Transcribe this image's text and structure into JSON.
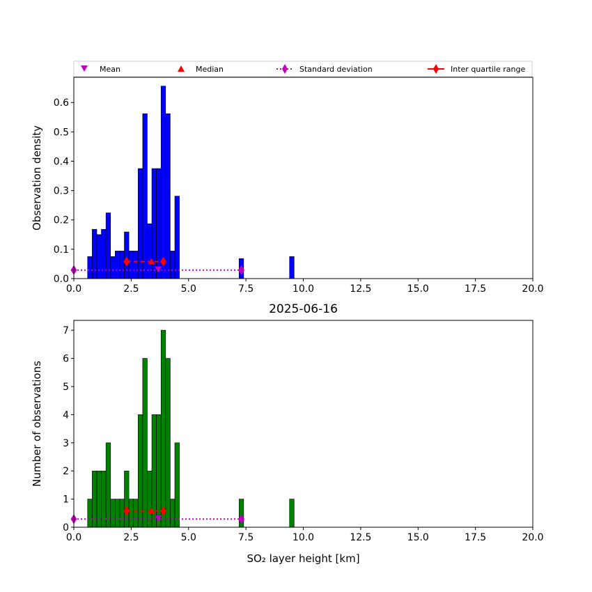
{
  "legend": {
    "items": [
      {
        "label": "Mean",
        "marker": "triangle-down",
        "color": "#bf00bf"
      },
      {
        "label": "Median",
        "marker": "triangle-up",
        "color": "#ff0000"
      },
      {
        "label": "Standard deviation",
        "marker": "diamond-dotted-line",
        "color": "#bf00bf"
      },
      {
        "label": "Inter quartile range",
        "marker": "diamond-solid-line",
        "color": "#ff0000"
      }
    ]
  },
  "chart_data": [
    {
      "type": "bar",
      "title": "",
      "xlabel": "",
      "ylabel": "Observation density",
      "xlim": [
        0,
        20
      ],
      "ylim": [
        0,
        0.686
      ],
      "xticks": [
        "0.0",
        "2.5",
        "5.0",
        "7.5",
        "10.0",
        "12.5",
        "15.0",
        "17.5",
        "20.0"
      ],
      "yticks": [
        "0.0",
        "0.1",
        "0.2",
        "0.3",
        "0.4",
        "0.5",
        "0.6"
      ],
      "ytick_values": [
        0,
        0.1,
        0.2,
        0.3,
        0.4,
        0.5,
        0.6
      ],
      "bar_color": "#0000ff",
      "bins": [
        {
          "x0": 0.6,
          "x1": 0.8,
          "value": 0.075
        },
        {
          "x0": 0.8,
          "x1": 1.0,
          "value": 0.168
        },
        {
          "x0": 1.0,
          "x1": 1.2,
          "value": 0.15
        },
        {
          "x0": 1.2,
          "x1": 1.4,
          "value": 0.168
        },
        {
          "x0": 1.4,
          "x1": 1.6,
          "value": 0.224
        },
        {
          "x0": 1.6,
          "x1": 1.8,
          "value": 0.075
        },
        {
          "x0": 1.8,
          "x1": 2.0,
          "value": 0.094
        },
        {
          "x0": 2.0,
          "x1": 2.2,
          "value": 0.094
        },
        {
          "x0": 2.2,
          "x1": 2.4,
          "value": 0.159
        },
        {
          "x0": 2.4,
          "x1": 2.6,
          "value": 0.094
        },
        {
          "x0": 2.6,
          "x1": 2.8,
          "value": 0.094
        },
        {
          "x0": 2.8,
          "x1": 3.0,
          "value": 0.375
        },
        {
          "x0": 3.0,
          "x1": 3.2,
          "value": 0.562
        },
        {
          "x0": 3.2,
          "x1": 3.4,
          "value": 0.187
        },
        {
          "x0": 3.4,
          "x1": 3.6,
          "value": 0.375
        },
        {
          "x0": 3.6,
          "x1": 3.8,
          "value": 0.375
        },
        {
          "x0": 3.8,
          "x1": 4.0,
          "value": 0.656
        },
        {
          "x0": 4.0,
          "x1": 4.2,
          "value": 0.562
        },
        {
          "x0": 4.2,
          "x1": 4.4,
          "value": 0.094
        },
        {
          "x0": 4.4,
          "x1": 4.6,
          "value": 0.281
        },
        {
          "x0": 7.2,
          "x1": 7.4,
          "value": 0.068
        },
        {
          "x0": 9.4,
          "x1": 9.6,
          "value": 0.075
        }
      ],
      "stats": {
        "marker_y": 0.058,
        "line_y": 0.029,
        "mean": {
          "x": 3.68,
          "y": 0.032
        },
        "median": {
          "x": 3.38,
          "y": 0.058
        },
        "std_range": [
          0.0,
          7.3
        ],
        "iqr_range": [
          2.3,
          3.9
        ]
      }
    },
    {
      "type": "bar",
      "title": "2025-06-16",
      "xlabel": "SO₂ layer height [km]",
      "ylabel": "Number of observations",
      "xlim": [
        0,
        20
      ],
      "ylim": [
        0,
        7.35
      ],
      "xticks": [
        "0.0",
        "2.5",
        "5.0",
        "7.5",
        "10.0",
        "12.5",
        "15.0",
        "17.5",
        "20.0"
      ],
      "yticks": [
        "0",
        "1",
        "2",
        "3",
        "4",
        "5",
        "6",
        "7"
      ],
      "ytick_values": [
        0,
        1,
        2,
        3,
        4,
        5,
        6,
        7
      ],
      "bar_color": "#008000",
      "bins": [
        {
          "x0": 0.6,
          "x1": 0.8,
          "value": 1
        },
        {
          "x0": 0.8,
          "x1": 1.0,
          "value": 2
        },
        {
          "x0": 1.0,
          "x1": 1.2,
          "value": 2
        },
        {
          "x0": 1.2,
          "x1": 1.4,
          "value": 2
        },
        {
          "x0": 1.4,
          "x1": 1.6,
          "value": 3
        },
        {
          "x0": 1.6,
          "x1": 1.8,
          "value": 1
        },
        {
          "x0": 1.8,
          "x1": 2.0,
          "value": 1
        },
        {
          "x0": 2.0,
          "x1": 2.2,
          "value": 1
        },
        {
          "x0": 2.2,
          "x1": 2.4,
          "value": 2
        },
        {
          "x0": 2.4,
          "x1": 2.6,
          "value": 1
        },
        {
          "x0": 2.6,
          "x1": 2.8,
          "value": 1
        },
        {
          "x0": 2.8,
          "x1": 3.0,
          "value": 4
        },
        {
          "x0": 3.0,
          "x1": 3.2,
          "value": 6
        },
        {
          "x0": 3.2,
          "x1": 3.4,
          "value": 2
        },
        {
          "x0": 3.4,
          "x1": 3.6,
          "value": 4
        },
        {
          "x0": 3.6,
          "x1": 3.8,
          "value": 4
        },
        {
          "x0": 3.8,
          "x1": 4.0,
          "value": 7
        },
        {
          "x0": 4.0,
          "x1": 4.2,
          "value": 6
        },
        {
          "x0": 4.2,
          "x1": 4.4,
          "value": 1
        },
        {
          "x0": 4.4,
          "x1": 4.6,
          "value": 3
        },
        {
          "x0": 7.2,
          "x1": 7.4,
          "value": 1
        },
        {
          "x0": 9.4,
          "x1": 9.6,
          "value": 1
        }
      ],
      "stats": {
        "marker_y": 0.58,
        "line_y": 0.29,
        "mean": {
          "x": 3.68,
          "y": 0.32
        },
        "median": {
          "x": 3.38,
          "y": 0.58
        },
        "std_range": [
          0.0,
          7.3
        ],
        "iqr_range": [
          2.3,
          3.9
        ]
      }
    }
  ]
}
